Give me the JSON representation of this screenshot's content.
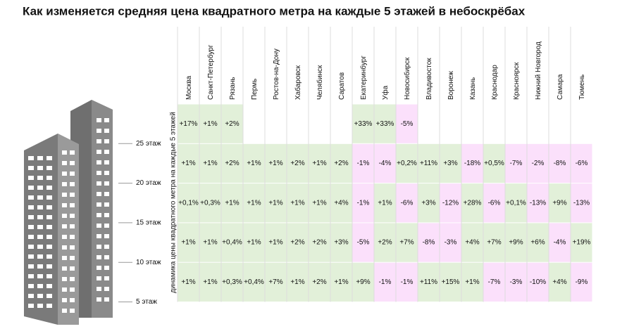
{
  "title": "Как изменяется средняя цена квадратного метра на каждые 5 этажей в небоскрёбах",
  "axis_label": "динамика цены квадратного метра на каждые 5 этажей",
  "floors": [
    "25 этаж",
    "20 этаж",
    "15 этаж",
    "10 этаж",
    "5 этаж"
  ],
  "table": {
    "columns": [
      "Москва",
      "Санкт-Петербург",
      "Рязань",
      "Пермь",
      "Ростов-на-Дону",
      "Хабаровск",
      "Челябинск",
      "Саратов",
      "Екатеринбург",
      "Уфа",
      "Новосибирск",
      "Владивосток",
      "Воронеж",
      "Казань",
      "Краснодар",
      "Красноярск",
      "Нижний Новгород",
      "Самара",
      "Тюмень"
    ],
    "rows": [
      [
        "+17%",
        "+1%",
        "+2%",
        null,
        null,
        null,
        null,
        null,
        "+33%",
        "+33%",
        "-5%",
        null,
        null,
        null,
        null,
        null,
        null,
        null,
        null
      ],
      [
        "+1%",
        "+1%",
        "+2%",
        "+1%",
        "+1%",
        "+2%",
        "+1%",
        "+2%",
        "-1%",
        "-4%",
        "+0,2%",
        "+11%",
        "+3%",
        "-18%",
        "+0,5%",
        "-7%",
        "-2%",
        "-8%",
        "-6%"
      ],
      [
        "+0,1%",
        "+0,3%",
        "+1%",
        "+1%",
        "+1%",
        "+1%",
        "+1%",
        "+4%",
        "-1%",
        "+1%",
        "-6%",
        "+3%",
        "-12%",
        "+28%",
        "-6%",
        "+0,1%",
        "-13%",
        "+9%",
        "-13%"
      ],
      [
        "+1%",
        "+1%",
        "+0,4%",
        "+1%",
        "+1%",
        "+2%",
        "+2%",
        "+3%",
        "-5%",
        "+2%",
        "+7%",
        "-8%",
        "-3%",
        "+4%",
        "+7%",
        "+9%",
        "+6%",
        "-4%",
        "+19%"
      ],
      [
        "+1%",
        "+1%",
        "+0,3%",
        "+0,4%",
        "+7%",
        "+1%",
        "+2%",
        "+1%",
        "+9%",
        "-1%",
        "-1%",
        "+11%",
        "+15%",
        "+1%",
        "-7%",
        "-3%",
        "-10%",
        "+4%",
        "-9%"
      ]
    ]
  }
}
